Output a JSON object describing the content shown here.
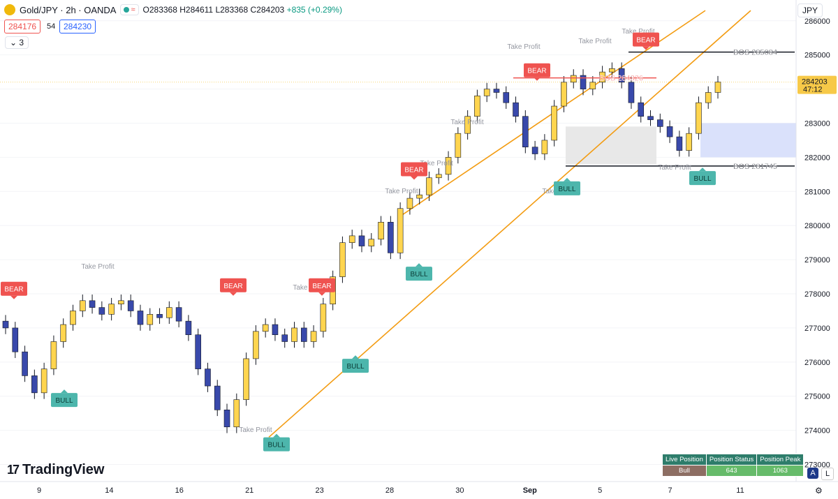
{
  "header": {
    "symbol": "Gold/JPY · 2h · OANDA",
    "open": "O283368",
    "high": "H284611",
    "low": "L283368",
    "close": "C284203",
    "change": "+835 (+0.29%)",
    "indicator_icon": "wave-icon",
    "bid": "284176",
    "spread": "54",
    "ask": "284230",
    "collapse_label": "3",
    "currency": "JPY"
  },
  "brand": {
    "name": "TradingView"
  },
  "position_table": {
    "headers": [
      "Live Position",
      "Position Status",
      "Position Peak"
    ],
    "values": [
      "Bull",
      "643",
      "1063"
    ]
  },
  "corner_buttons": [
    "A",
    "L"
  ],
  "chart_data": {
    "type": "candlestick",
    "title": "Gold/JPY · 2h · OANDA",
    "y_axis_ticks": [
      273000,
      274000,
      275000,
      276000,
      277000,
      278000,
      279000,
      280000,
      281000,
      282000,
      283000,
      284000,
      285000,
      286000
    ],
    "ylim": [
      272500,
      286200
    ],
    "x_axis_ticks": [
      "9",
      "14",
      "16",
      "21",
      "23",
      "28",
      "30",
      "Sep",
      "5",
      "7",
      "11"
    ],
    "current_price": {
      "value": 284203,
      "label": "284203",
      "countdown": "47:12"
    },
    "price_series_close": [
      277000,
      276300,
      275600,
      275100,
      275800,
      276600,
      277100,
      277500,
      277800,
      277600,
      277400,
      277700,
      277800,
      277500,
      277100,
      277400,
      277300,
      277600,
      277200,
      276800,
      275800,
      275300,
      274600,
      274100,
      274900,
      276100,
      276900,
      277100,
      276800,
      276600,
      277000,
      276600,
      276900,
      277700,
      278500,
      279500,
      279700,
      279400,
      279600,
      280100,
      279200,
      280500,
      280800,
      280900,
      281400,
      281500,
      282000,
      282700,
      283200,
      283800,
      284000,
      283900,
      283600,
      283200,
      282300,
      282100,
      282500,
      283500,
      284200,
      284400,
      284000,
      284200,
      284500,
      284600,
      284200,
      283600,
      283200,
      283100,
      282900,
      282600,
      282200,
      282700,
      283600,
      283900,
      284203
    ],
    "signals": [
      {
        "label": "BEAR",
        "price": 277700
      },
      {
        "label": "BULL",
        "price": 275300
      },
      {
        "label": "BEAR",
        "price": 277800
      },
      {
        "label": "BEAR",
        "price": 277800
      },
      {
        "label": "BULL",
        "price": 274000
      },
      {
        "label": "BULL",
        "price": 276300
      },
      {
        "label": "BEAR",
        "price": 281200
      },
      {
        "label": "BULL",
        "price": 279000
      },
      {
        "label": "BEAR",
        "price": 284100
      },
      {
        "label": "BULL",
        "price": 281500
      },
      {
        "label": "BEAR",
        "price": 285000
      },
      {
        "label": "BULL",
        "price": 281800
      }
    ],
    "take_profit_labels": [
      "Take Profit",
      "Take Profit",
      "Take Profit",
      "Take Profit",
      "Take Profit",
      "Take Profit",
      "Take Profit",
      "Take Profit",
      "Take Profit",
      "Take Profit",
      "Take Profit"
    ],
    "bos_levels": [
      {
        "label": "BOS 285084",
        "price": 285084
      },
      {
        "label": "BOS 284326",
        "price": 284326
      },
      {
        "label": "BOS 281745",
        "price": 281745
      }
    ],
    "zones": [
      {
        "type": "gray",
        "low": 281800,
        "high": 282900
      },
      {
        "type": "blue",
        "low": 282000,
        "high": 283000
      }
    ],
    "trendlines": "orange ascending channel lines",
    "colors": {
      "bull": "#ffd54f",
      "bear": "#3949ab",
      "bear_tag": "#ef5350",
      "bull_tag": "#4db6ac",
      "trend": "#f39c12"
    }
  }
}
